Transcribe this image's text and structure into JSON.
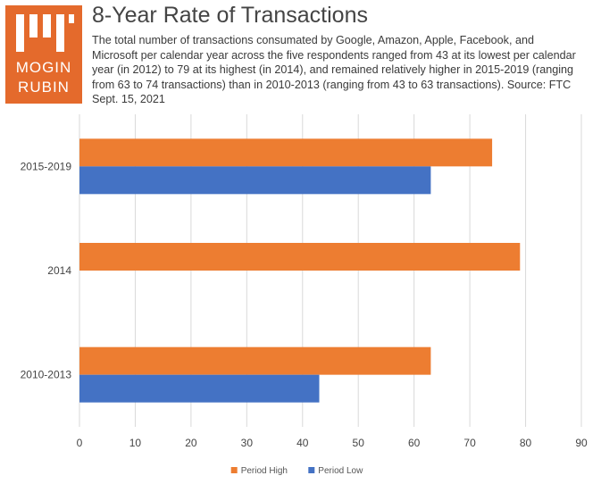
{
  "logo": {
    "line1": "MOGIN",
    "line2": "RUBIN",
    "accent": "#e46a2c"
  },
  "header": {
    "title": "8-Year Rate of Transactions",
    "subtitle": "The total number of transactions consumated by Google, Amazon, Apple, Facebook, and Microsoft per calendar year across the five respondents ranged from 43 at its lowest per calendar year (in 2012) to 79 at its highest (in 2014), and remained relatively higher in 2015-2019 (ranging from 63 to 74 transactions) than in 2010-2013 (ranging from 43 to 63 transactions). Source: FTC Sept. 15, 2021"
  },
  "chart_data": {
    "type": "bar",
    "orientation": "horizontal",
    "categories": [
      "2015-2019",
      "2014",
      "2010-2013"
    ],
    "series": [
      {
        "name": "Period High",
        "color": "#ed7d31",
        "values": [
          74,
          79,
          63
        ]
      },
      {
        "name": "Period Low",
        "color": "#4472c4",
        "values": [
          63,
          null,
          43
        ]
      }
    ],
    "xlim": [
      0,
      90
    ],
    "xticks": [
      0,
      10,
      20,
      30,
      40,
      50,
      60,
      70,
      80,
      90
    ],
    "grid": true,
    "legend": "bottom"
  }
}
